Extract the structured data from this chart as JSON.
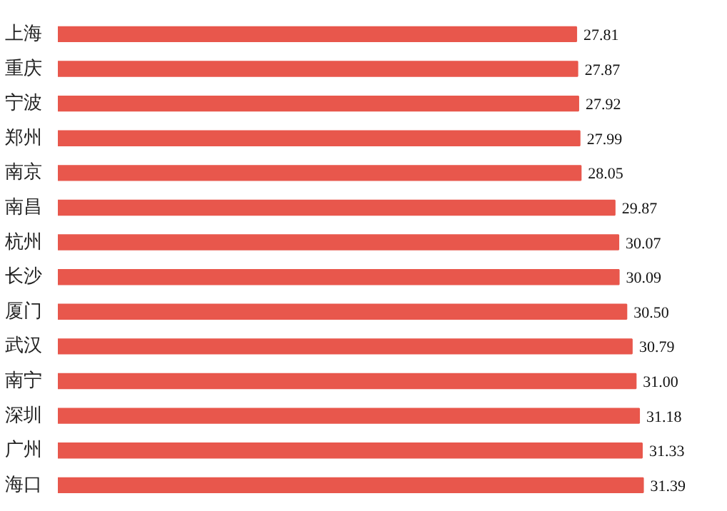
{
  "chart_data": {
    "type": "bar",
    "orientation": "horizontal",
    "categories": [
      "上海",
      "重庆",
      "宁波",
      "郑州",
      "南京",
      "南昌",
      "杭州",
      "长沙",
      "厦门",
      "武汉",
      "南宁",
      "深圳",
      "广州",
      "海口"
    ],
    "values": [
      27.81,
      27.87,
      27.92,
      27.99,
      28.05,
      29.87,
      30.07,
      30.09,
      30.5,
      30.79,
      31.0,
      31.18,
      31.33,
      31.39
    ],
    "value_labels": [
      "27.81",
      "27.87",
      "27.92",
      "27.99",
      "28.05",
      "29.87",
      "30.07",
      "30.09",
      "30.50",
      "30.79",
      "31.00",
      "31.18",
      "31.33",
      "31.39"
    ],
    "color": "#e8574c",
    "tick_labels": "y",
    "grid": false
  }
}
